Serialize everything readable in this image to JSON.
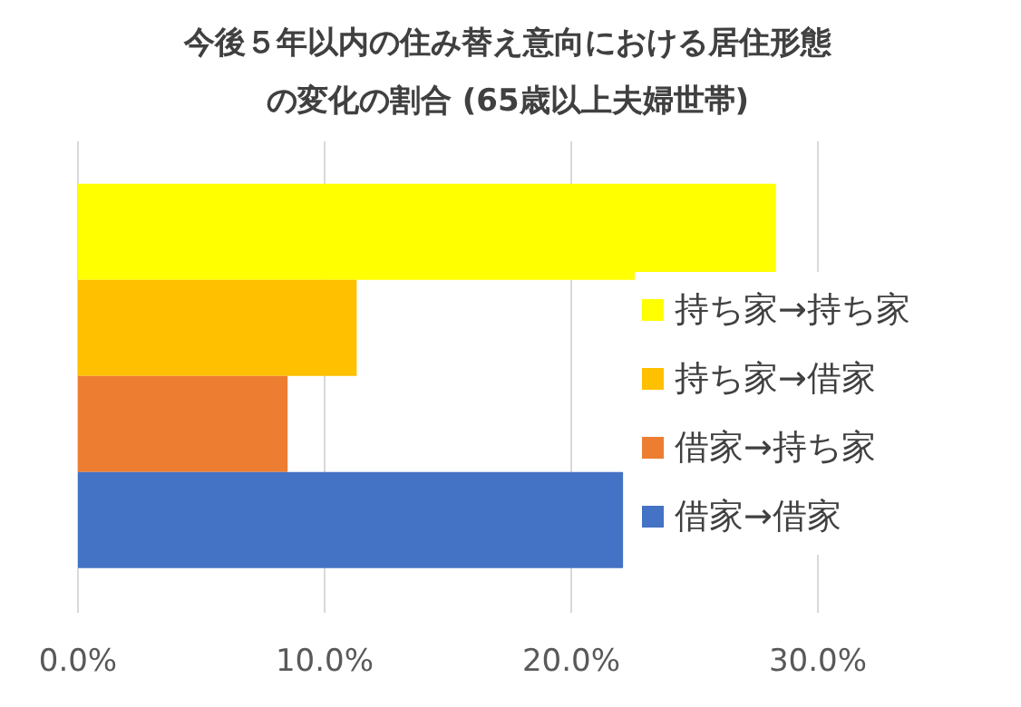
{
  "chart_data": {
    "type": "bar",
    "orientation": "horizontal",
    "title": "今後５年以内の住み替え意向における居住形態の変化の割合 (65歳以上夫婦世帯)",
    "categories": [
      null
    ],
    "series": [
      {
        "name": "持ち家→持ち家",
        "color": "#ffff00",
        "values": [
          28.3
        ]
      },
      {
        "name": "持ち家→借家",
        "color": "#ffc000",
        "values": [
          11.3
        ]
      },
      {
        "name": "借家→持ち家",
        "color": "#ed7d31",
        "values": [
          8.5
        ]
      },
      {
        "name": "借家→借家",
        "color": "#4472c4",
        "values": [
          22.1
        ]
      }
    ],
    "xlim": [
      0,
      30
    ],
    "xticks": [
      {
        "value": 0,
        "label": "0.0%"
      },
      {
        "value": 10,
        "label": "10.0%"
      },
      {
        "value": 20,
        "label": "20.0%"
      },
      {
        "value": 30,
        "label": "30.0%"
      }
    ],
    "grid": "x",
    "legend": "right"
  }
}
